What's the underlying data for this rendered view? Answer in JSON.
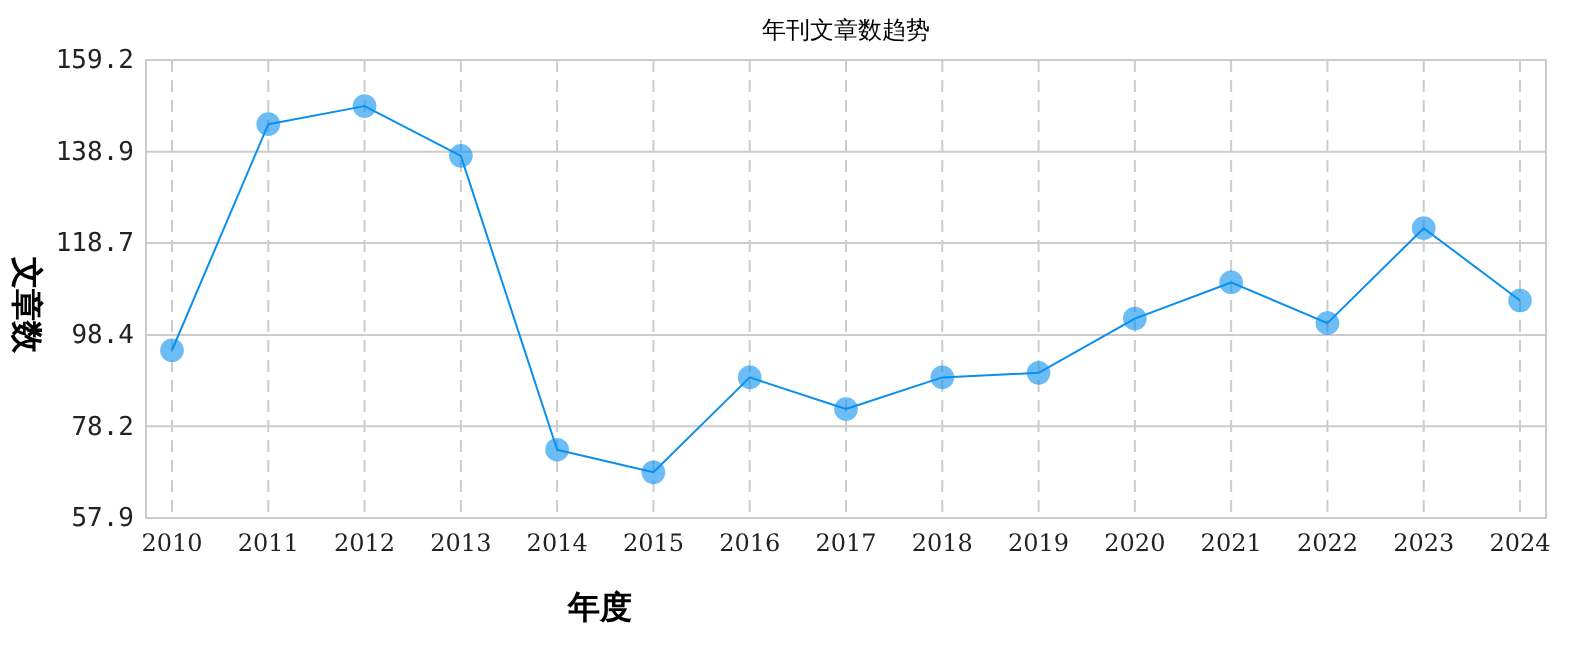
{
  "chart_data": {
    "type": "line",
    "title": "年刊文章数趋势",
    "xlabel": "年度",
    "ylabel": "文章数",
    "categories": [
      "2010",
      "2011",
      "2012",
      "2013",
      "2014",
      "2015",
      "2016",
      "2017",
      "2018",
      "2019",
      "2020",
      "2021",
      "2022",
      "2023",
      "2024"
    ],
    "series": [
      {
        "color": "#0a8fef",
        "values": [
          95,
          145,
          149,
          138,
          73,
          68,
          89,
          82,
          89,
          90,
          102,
          110,
          101,
          122,
          106
        ]
      }
    ],
    "ylim": [
      57.9,
      159.2
    ],
    "yticks": [
      57.9,
      78.2,
      98.4,
      118.7,
      138.9,
      159.2
    ],
    "grid": true,
    "marker": "circle",
    "line_style": "solid"
  }
}
